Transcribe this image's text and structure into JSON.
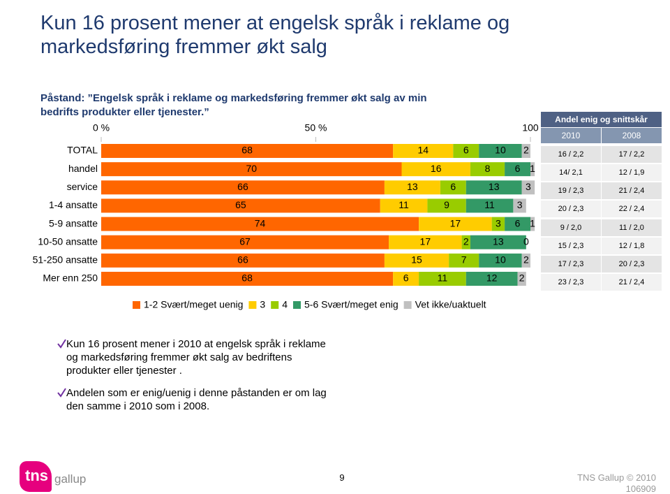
{
  "title": "Kun 16 prosent mener at engelsk språk i reklame og markedsføring fremmer økt salg",
  "statement": "Påstand: ”Engelsk språk i reklame og markedsføring fremmer økt salg av min bedrifts produkter eller tjenester.”",
  "chart_data": {
    "type": "stacked-barh",
    "categories": [
      "TOTAL",
      "handel",
      "service",
      "1-4 ansatte",
      "5-9 ansatte",
      "10-50 ansatte",
      "51-250 ansatte",
      "Mer enn 250"
    ],
    "series": [
      {
        "name": "1-2 Svært/meget uenig",
        "color": "#ff6600",
        "values": [
          68,
          70,
          66,
          65,
          74,
          67,
          66,
          68
        ]
      },
      {
        "name": "3",
        "color": "#ffcc00",
        "values": [
          14,
          16,
          13,
          11,
          17,
          17,
          15,
          6
        ]
      },
      {
        "name": "4",
        "color": "#99cc00",
        "values": [
          6,
          8,
          6,
          9,
          3,
          2,
          7,
          11
        ]
      },
      {
        "name": "5-6 Svært/meget enig",
        "color": "#339966",
        "values": [
          10,
          6,
          13,
          11,
          6,
          13,
          10,
          12
        ]
      },
      {
        "name": "Vet ikke/uaktuelt",
        "color": "#c0c0c0",
        "values": [
          2,
          1,
          3,
          3,
          1,
          0,
          2,
          2
        ]
      }
    ],
    "xlim": [
      0,
      100
    ],
    "xticks": [
      {
        "value": 0,
        "label": "0 %"
      },
      {
        "value": 50,
        "label": "50 %"
      },
      100
    ]
  },
  "table": {
    "header": "Andel enig og snittskår",
    "columns": [
      "2010",
      "2008"
    ],
    "rows": [
      [
        "16 / 2,2",
        "17 / 2,2"
      ],
      [
        "14/ 2,1",
        "12 / 1,9"
      ],
      [
        "19 / 2,3",
        "21 / 2,4"
      ],
      [
        "20 / 2,3",
        "22 / 2,4"
      ],
      [
        "9 / 2,0",
        "11 / 2,0"
      ],
      [
        "15 / 2,3",
        "12 / 1,8"
      ],
      [
        "17 / 2,3",
        "20 / 2,3"
      ],
      [
        "23 / 2,3",
        "21 / 2,4"
      ]
    ]
  },
  "bullets": [
    "Kun 16 prosent mener i 2010 at engelsk språk i reklame og markedsføring fremmer økt salg av bedriftens produkter eller tjenester .",
    "Andelen som er enig/uenig i denne påstanden er om lag den samme i 2010 som i 2008."
  ],
  "logo": {
    "brand": "tns",
    "name": "gallup"
  },
  "footer": {
    "page": "9",
    "copyright": "TNS Gallup © 2010",
    "code": "106909"
  }
}
